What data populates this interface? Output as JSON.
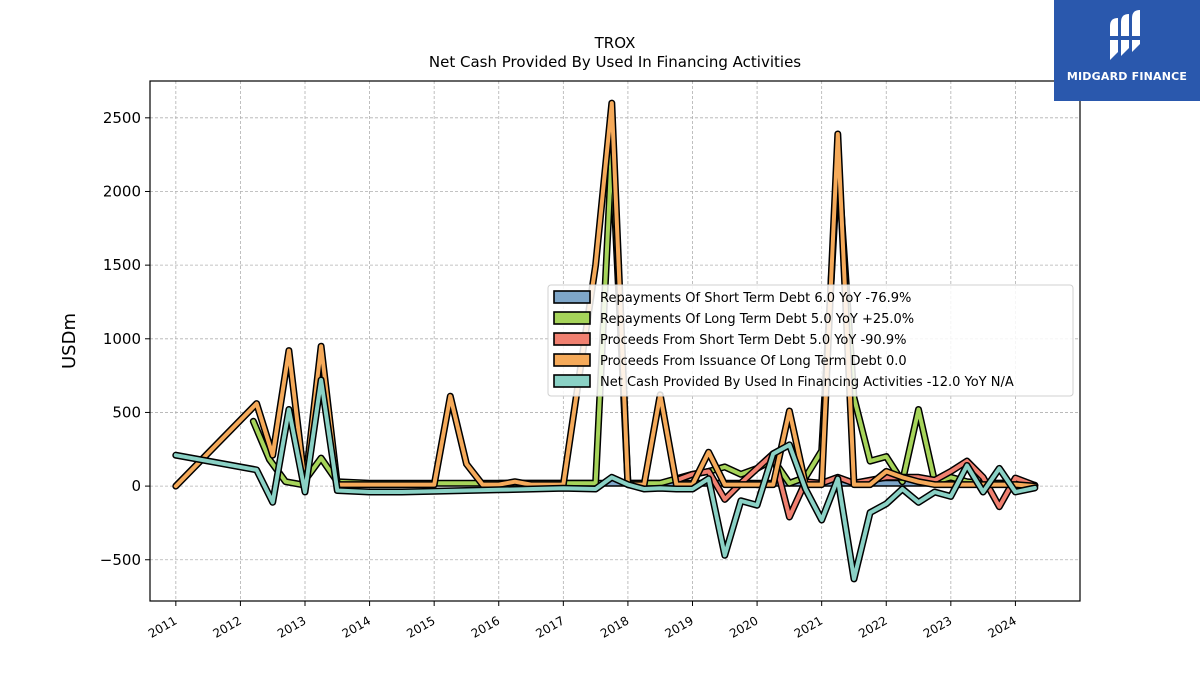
{
  "logo": {
    "text": "MIDGARD FINANCE",
    "background": "#2a58ad"
  },
  "chart_data": {
    "type": "line",
    "title": "TROX",
    "subtitle": "Net Cash Provided By Used In Financing Activities",
    "xlabel": "",
    "ylabel": "USDm",
    "xlim": [
      2010.6,
      2025.0
    ],
    "ylim": [
      -780,
      2750
    ],
    "x_ticks": [
      "2011",
      "2012",
      "2013",
      "2014",
      "2015",
      "2016",
      "2017",
      "2018",
      "2019",
      "2020",
      "2021",
      "2022",
      "2023",
      "2024"
    ],
    "y_ticks": [
      -500,
      0,
      500,
      1000,
      1500,
      2000,
      2500
    ],
    "y_tick_labels": [
      "−500",
      "0",
      "500",
      "1000",
      "1500",
      "2000",
      "2500"
    ],
    "grid": true,
    "legend_position": "center-right",
    "series": [
      {
        "name": "Repayments Of Short Term Debt",
        "legend": "Repayments Of Short Term Debt  6.0 YoY -76.9%",
        "color": "#7ea6c9",
        "points": [
          [
            2016.0,
            20
          ],
          [
            2016.25,
            20
          ],
          [
            2016.5,
            20
          ],
          [
            2016.75,
            20
          ],
          [
            2017.0,
            20
          ],
          [
            2017.25,
            20
          ],
          [
            2017.5,
            20
          ],
          [
            2017.75,
            20
          ],
          [
            2018.0,
            20
          ],
          [
            2018.25,
            20
          ],
          [
            2018.5,
            20
          ],
          [
            2018.75,
            20
          ],
          [
            2019.0,
            20
          ],
          [
            2019.25,
            20
          ],
          [
            2019.5,
            20
          ],
          [
            2019.75,
            20
          ],
          [
            2020.0,
            20
          ],
          [
            2020.25,
            20
          ],
          [
            2020.5,
            20
          ],
          [
            2020.75,
            20
          ],
          [
            2021.0,
            20
          ],
          [
            2021.25,
            20
          ],
          [
            2021.5,
            20
          ],
          [
            2021.75,
            20
          ],
          [
            2022.0,
            20
          ],
          [
            2022.25,
            20
          ],
          [
            2022.5,
            20
          ],
          [
            2022.75,
            20
          ],
          [
            2023.0,
            20
          ],
          [
            2023.25,
            20
          ],
          [
            2023.5,
            20
          ],
          [
            2023.75,
            20
          ],
          [
            2024.0,
            26
          ],
          [
            2024.3,
            6
          ]
        ]
      },
      {
        "name": "Repayments Of Long Term Debt",
        "legend": "Repayments Of Long Term Debt  5.0 YoY +25.0%",
        "color": "#a6d45a",
        "points": [
          [
            2012.2,
            440
          ],
          [
            2012.45,
            180
          ],
          [
            2012.7,
            30
          ],
          [
            2012.95,
            10
          ],
          [
            2013.25,
            190
          ],
          [
            2013.5,
            30
          ],
          [
            2014.0,
            20
          ],
          [
            2015.0,
            20
          ],
          [
            2016.0,
            20
          ],
          [
            2017.0,
            20
          ],
          [
            2017.5,
            20
          ],
          [
            2017.75,
            2280
          ],
          [
            2018.0,
            20
          ],
          [
            2018.5,
            20
          ],
          [
            2019.0,
            80
          ],
          [
            2019.25,
            100
          ],
          [
            2019.5,
            130
          ],
          [
            2019.75,
            80
          ],
          [
            2020.0,
            120
          ],
          [
            2020.25,
            180
          ],
          [
            2020.5,
            20
          ],
          [
            2020.75,
            60
          ],
          [
            2021.0,
            240
          ],
          [
            2021.25,
            2200
          ],
          [
            2021.5,
            600
          ],
          [
            2021.75,
            170
          ],
          [
            2022.0,
            200
          ],
          [
            2022.25,
            30
          ],
          [
            2022.5,
            520
          ],
          [
            2022.75,
            30
          ],
          [
            2023.0,
            60
          ],
          [
            2023.25,
            30
          ],
          [
            2023.5,
            20
          ],
          [
            2023.75,
            20
          ],
          [
            2024.0,
            4
          ],
          [
            2024.3,
            5
          ]
        ]
      },
      {
        "name": "Proceeds From Short Term Debt",
        "legend": "Proceeds From Short Term Debt  5.0 YoY -90.9%",
        "color": "#f08070",
        "points": [
          [
            2018.75,
            40
          ],
          [
            2019.0,
            80
          ],
          [
            2019.25,
            100
          ],
          [
            2019.5,
            -90
          ],
          [
            2019.75,
            20
          ],
          [
            2020.0,
            120
          ],
          [
            2020.25,
            220
          ],
          [
            2020.5,
            -210
          ],
          [
            2020.75,
            30
          ],
          [
            2021.0,
            20
          ],
          [
            2021.25,
            60
          ],
          [
            2021.5,
            20
          ],
          [
            2021.75,
            40
          ],
          [
            2022.0,
            60
          ],
          [
            2022.25,
            60
          ],
          [
            2022.5,
            60
          ],
          [
            2022.75,
            40
          ],
          [
            2023.0,
            100
          ],
          [
            2023.25,
            170
          ],
          [
            2023.5,
            60
          ],
          [
            2023.75,
            -140
          ],
          [
            2024.0,
            55
          ],
          [
            2024.3,
            5
          ]
        ]
      },
      {
        "name": "Proceeds From Issuance Of Long Term Debt",
        "legend": "Proceeds From Issuance Of Long Term Debt  0.0",
        "color": "#f5aa5a",
        "points": [
          [
            2011.0,
            0
          ],
          [
            2012.25,
            560
          ],
          [
            2012.5,
            210
          ],
          [
            2012.75,
            920
          ],
          [
            2013.0,
            0
          ],
          [
            2013.25,
            950
          ],
          [
            2013.5,
            10
          ],
          [
            2014.0,
            10
          ],
          [
            2014.5,
            10
          ],
          [
            2015.0,
            10
          ],
          [
            2015.25,
            610
          ],
          [
            2015.5,
            150
          ],
          [
            2015.75,
            10
          ],
          [
            2016.0,
            10
          ],
          [
            2016.25,
            30
          ],
          [
            2016.5,
            10
          ],
          [
            2017.0,
            10
          ],
          [
            2017.5,
            1500
          ],
          [
            2017.75,
            2600
          ],
          [
            2018.0,
            10
          ],
          [
            2018.25,
            10
          ],
          [
            2018.5,
            620
          ],
          [
            2018.75,
            10
          ],
          [
            2019.0,
            10
          ],
          [
            2019.25,
            230
          ],
          [
            2019.5,
            10
          ],
          [
            2019.75,
            10
          ],
          [
            2020.0,
            10
          ],
          [
            2020.25,
            10
          ],
          [
            2020.5,
            510
          ],
          [
            2020.75,
            10
          ],
          [
            2021.0,
            10
          ],
          [
            2021.25,
            2390
          ],
          [
            2021.5,
            10
          ],
          [
            2021.75,
            10
          ],
          [
            2022.0,
            100
          ],
          [
            2022.25,
            60
          ],
          [
            2022.5,
            30
          ],
          [
            2022.75,
            10
          ],
          [
            2023.0,
            10
          ],
          [
            2023.25,
            10
          ],
          [
            2023.5,
            10
          ],
          [
            2023.75,
            10
          ],
          [
            2024.0,
            10
          ],
          [
            2024.3,
            0
          ]
        ]
      },
      {
        "name": "Net Cash Provided By Used In Financing Activities",
        "legend": "Net Cash Provided By Used In Financing Activities  -12.0 YoY N/A",
        "color": "#8ad1c5",
        "points": [
          [
            2011.0,
            210
          ],
          [
            2012.25,
            110
          ],
          [
            2012.5,
            -110
          ],
          [
            2012.75,
            520
          ],
          [
            2013.0,
            -40
          ],
          [
            2013.25,
            720
          ],
          [
            2013.5,
            -30
          ],
          [
            2014.0,
            -40
          ],
          [
            2014.5,
            -40
          ],
          [
            2015.0,
            -35
          ],
          [
            2016.0,
            -25
          ],
          [
            2017.0,
            -15
          ],
          [
            2017.5,
            -20
          ],
          [
            2017.75,
            60
          ],
          [
            2018.0,
            10
          ],
          [
            2018.25,
            -20
          ],
          [
            2018.5,
            -15
          ],
          [
            2018.75,
            -20
          ],
          [
            2019.0,
            -20
          ],
          [
            2019.25,
            50
          ],
          [
            2019.5,
            -470
          ],
          [
            2019.75,
            -100
          ],
          [
            2020.0,
            -130
          ],
          [
            2020.25,
            220
          ],
          [
            2020.5,
            280
          ],
          [
            2020.75,
            -20
          ],
          [
            2021.0,
            -230
          ],
          [
            2021.25,
            50
          ],
          [
            2021.5,
            -630
          ],
          [
            2021.75,
            -180
          ],
          [
            2022.0,
            -120
          ],
          [
            2022.25,
            -20
          ],
          [
            2022.5,
            -110
          ],
          [
            2022.75,
            -40
          ],
          [
            2023.0,
            -70
          ],
          [
            2023.25,
            140
          ],
          [
            2023.5,
            -40
          ],
          [
            2023.75,
            120
          ],
          [
            2024.0,
            -40
          ],
          [
            2024.3,
            -12
          ]
        ]
      }
    ]
  }
}
